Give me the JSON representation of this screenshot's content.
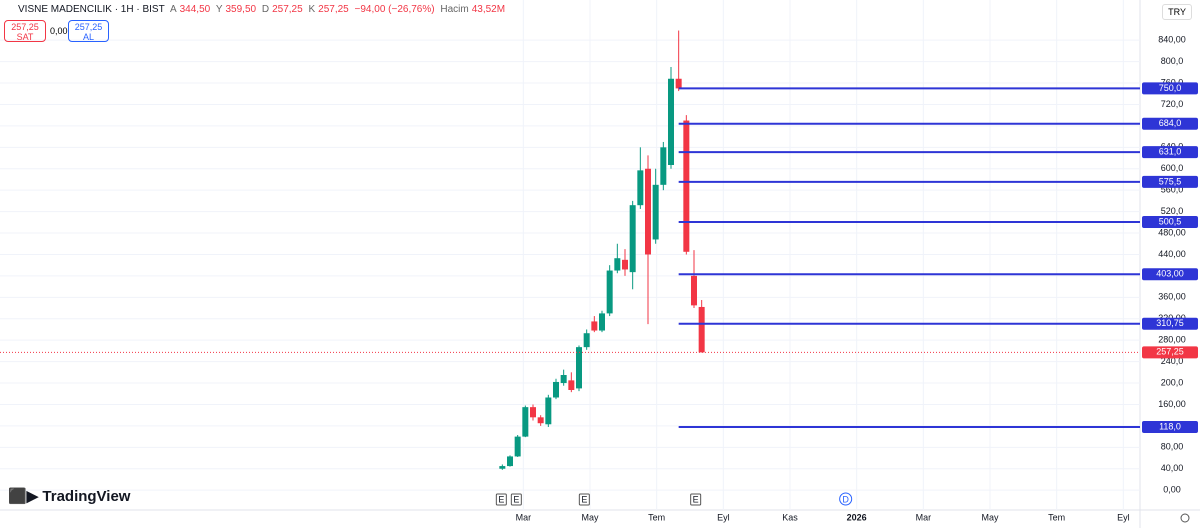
{
  "header": {
    "symbol": "VISNE MADENCILIK · 1H · BIST",
    "open_key": "A",
    "open": "344,50",
    "high_key": "Y",
    "high": "359,50",
    "low_key": "D",
    "low": "257,25",
    "close_key": "K",
    "close": "257,25",
    "change": "−94,00 (−26,76%)",
    "volume_key": "Hacim",
    "volume": "43,52M",
    "sell_price": "257,25",
    "sell": "SAT",
    "spread": "0,00",
    "buy_price": "257,25",
    "buy": "AL",
    "currency": "TRY",
    "brand": "TradingView"
  },
  "chart_data": {
    "type": "candlestick",
    "up_color": "#089981",
    "down_color": "#f23645",
    "grid": true,
    "x": [
      2.37,
      2.6,
      2.83,
      3.06,
      3.29,
      3.52,
      3.75,
      3.98,
      4.21,
      4.44,
      4.67,
      4.9,
      5.13,
      5.36,
      5.59,
      5.82,
      6.05,
      6.28,
      6.51,
      6.74,
      6.97,
      7.2,
      7.43,
      7.66,
      7.89,
      8.12,
      8.35
    ],
    "open": [
      40,
      45,
      63,
      100,
      155,
      136,
      123,
      173,
      200,
      205,
      190,
      267,
      315,
      298,
      330,
      410,
      430,
      407,
      532,
      600,
      468,
      570,
      607,
      768,
      690,
      400,
      342
    ],
    "high": [
      48,
      65,
      103,
      158,
      160,
      140,
      178,
      208,
      225,
      220,
      270,
      300,
      325,
      335,
      420,
      460,
      450,
      540,
      640,
      625,
      600,
      650,
      790,
      858,
      700,
      448,
      355
    ],
    "low": [
      38,
      44,
      62,
      99,
      130,
      120,
      118,
      170,
      195,
      183,
      185,
      262,
      295,
      295,
      325,
      405,
      400,
      375,
      525,
      310,
      460,
      560,
      600,
      745,
      440,
      340,
      257
    ],
    "close": [
      45,
      63,
      100,
      155,
      136,
      125,
      173,
      202,
      215,
      187,
      267,
      293,
      298,
      330,
      410,
      433,
      412,
      532,
      597,
      440,
      570,
      640,
      768,
      750,
      445,
      345,
      257.25
    ],
    "xlim": [
      -12.7,
      21.5
    ],
    "ylim": [
      -37,
      915
    ],
    "xticks": [
      {
        "value": 3,
        "label": "Mar"
      },
      {
        "value": 5,
        "label": "May"
      },
      {
        "value": 7,
        "label": "Tem"
      },
      {
        "value": 9,
        "label": "Eyl"
      },
      {
        "value": 11,
        "label": "Kas"
      },
      {
        "value": 13,
        "label": "2026"
      },
      {
        "value": 15,
        "label": "Mar"
      },
      {
        "value": 17,
        "label": "May"
      },
      {
        "value": 19,
        "label": "Tem"
      },
      {
        "value": 21,
        "label": "Eyl"
      }
    ],
    "yticks": [
      {
        "value": 0,
        "label": "0,00"
      },
      {
        "value": 40,
        "label": "40,00"
      },
      {
        "value": 80,
        "label": "80,00"
      },
      {
        "value": 120,
        "label": "120,0"
      },
      {
        "value": 160,
        "label": "160,00"
      },
      {
        "value": 200,
        "label": "200,0"
      },
      {
        "value": 240,
        "label": "240,0"
      },
      {
        "value": 280,
        "label": "280,00"
      },
      {
        "value": 320,
        "label": "320,00"
      },
      {
        "value": 360,
        "label": "360,00"
      },
      {
        "value": 400,
        "label": "400,00"
      },
      {
        "value": 440,
        "label": "440,00"
      },
      {
        "value": 480,
        "label": "480,00"
      },
      {
        "value": 520,
        "label": "520,0"
      },
      {
        "value": 560,
        "label": "560,0"
      },
      {
        "value": 600,
        "label": "600,0"
      },
      {
        "value": 640,
        "label": "640,0"
      },
      {
        "value": 680,
        "label": "680,0"
      },
      {
        "value": 720,
        "label": "720,0"
      },
      {
        "value": 760,
        "label": "760,0"
      },
      {
        "value": 800,
        "label": "800,0"
      },
      {
        "value": 840,
        "label": "840,00"
      }
    ],
    "levels": {
      "color": "#2e35d6",
      "values": [
        750,
        684,
        631,
        575.5,
        500.5,
        403,
        310.75,
        118
      ],
      "value_labels": [
        "750,0",
        "684,0",
        "631,0",
        "575,5",
        "500,5",
        "403,00",
        "310,75",
        "118,0"
      ]
    },
    "last_price": {
      "value": 257.25,
      "label": "257,25"
    },
    "events": {
      "x": [
        2.34,
        2.79,
        4.83,
        8.17,
        12.67
      ],
      "labels": [
        "E",
        "E",
        "E",
        "E",
        "D"
      ]
    }
  }
}
